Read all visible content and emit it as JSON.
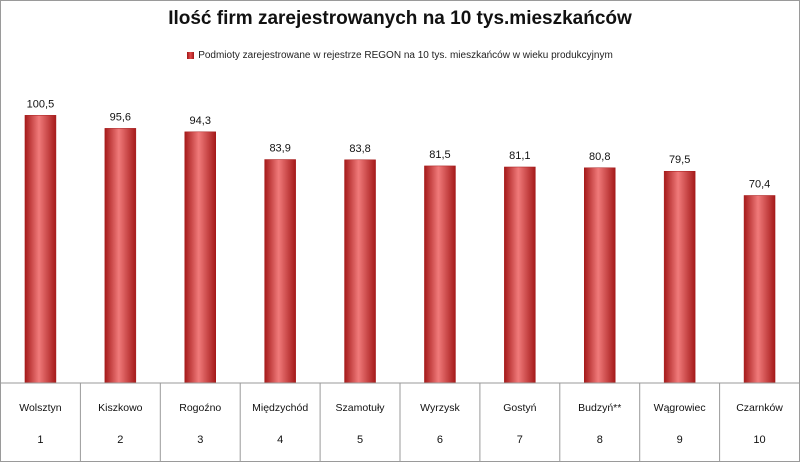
{
  "colors": {
    "bar_dark": "#a51a1a",
    "bar_mid": "#d93636",
    "bar_light": "#f07a7a",
    "grid": "#9a9a9a"
  },
  "chart_data": {
    "type": "bar",
    "title": "Ilość firm zarejestrowanych na 10 tys.mieszkańców",
    "legend": "Podmioty zarejestrowane  w rejestrze REGON na 10 tys.  mieszkańców  w wieku  produkcyjnym",
    "legend_position": "top-center",
    "categories": [
      "Wolsztyn",
      "Kiszkowo",
      "Rogoźno",
      "Międzychód",
      "Szamotuły",
      "Wyrzysk",
      "Gostyń",
      "Budzyń**",
      "Wągrowiec",
      "Czarnków"
    ],
    "ranks": [
      "1",
      "2",
      "3",
      "4",
      "5",
      "6",
      "7",
      "8",
      "9",
      "10"
    ],
    "series": [
      {
        "values": [
          100.5,
          95.6,
          94.3,
          83.9,
          83.8,
          81.5,
          81.1,
          80.8,
          79.5,
          70.4
        ],
        "value_labels": [
          "100,5",
          "95,6",
          "94,3",
          "83,9",
          "83,8",
          "81,5",
          "81,1",
          "80,8",
          "79,5",
          "70,4"
        ]
      }
    ],
    "ylim": [
      0,
      110
    ],
    "grid": false,
    "data_labels": true
  }
}
